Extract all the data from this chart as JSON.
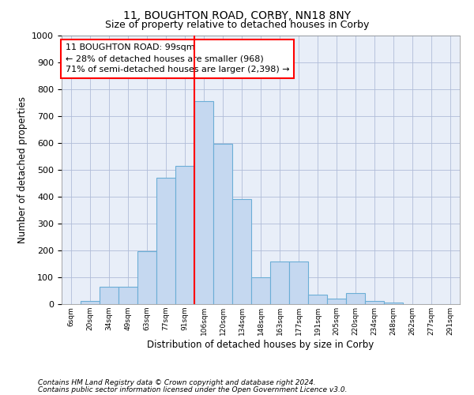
{
  "title1": "11, BOUGHTON ROAD, CORBY, NN18 8NY",
  "title2": "Size of property relative to detached houses in Corby",
  "xlabel": "Distribution of detached houses by size in Corby",
  "ylabel": "Number of detached properties",
  "annotation_line1": "11 BOUGHTON ROAD: 99sqm",
  "annotation_line2": "← 28% of detached houses are smaller (968)",
  "annotation_line3": "71% of semi-detached houses are larger (2,398) →",
  "footnote1": "Contains HM Land Registry data © Crown copyright and database right 2024.",
  "footnote2": "Contains public sector information licensed under the Open Government Licence v3.0.",
  "bar_labels": [
    "6sqm",
    "20sqm",
    "34sqm",
    "49sqm",
    "63sqm",
    "77sqm",
    "91sqm",
    "106sqm",
    "120sqm",
    "134sqm",
    "148sqm",
    "163sqm",
    "177sqm",
    "191sqm",
    "205sqm",
    "220sqm",
    "234sqm",
    "248sqm",
    "262sqm",
    "277sqm",
    "291sqm"
  ],
  "bar_values": [
    0,
    12,
    65,
    65,
    197,
    470,
    516,
    757,
    597,
    390,
    100,
    160,
    160,
    35,
    22,
    42,
    12,
    7,
    0,
    0,
    0
  ],
  "bar_color": "#c5d8f0",
  "bar_edge_color": "#6baed6",
  "vline_color": "red",
  "vline_x_index": 7,
  "ylim": [
    0,
    1000
  ],
  "yticks": [
    0,
    100,
    200,
    300,
    400,
    500,
    600,
    700,
    800,
    900,
    1000
  ],
  "bg_color": "#e8eef8",
  "grid_color": "#b0bcd8",
  "title1_fontsize": 10,
  "title2_fontsize": 9,
  "annotation_fontsize": 8,
  "xlabel_fontsize": 8.5,
  "ylabel_fontsize": 8.5,
  "footnote_fontsize": 6.5
}
